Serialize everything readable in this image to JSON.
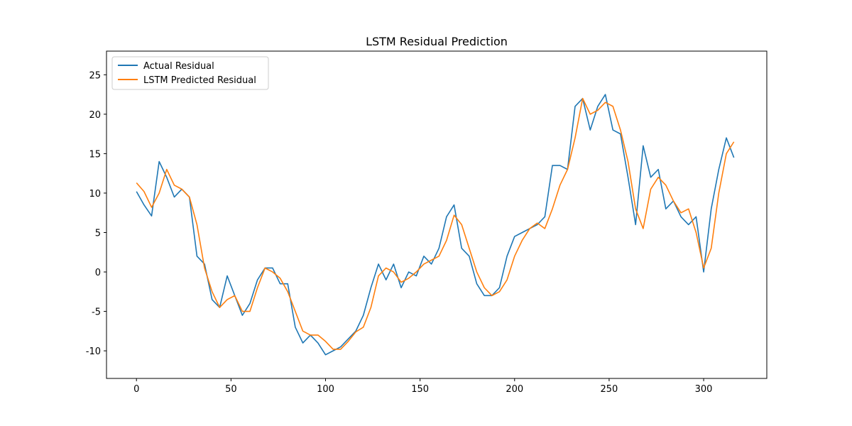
{
  "chart_data": {
    "type": "line",
    "title": "LSTM Residual Prediction",
    "x": [
      0,
      4,
      8,
      12,
      16,
      20,
      24,
      28,
      32,
      36,
      40,
      44,
      48,
      52,
      56,
      60,
      64,
      68,
      72,
      76,
      80,
      84,
      88,
      92,
      96,
      100,
      104,
      108,
      112,
      116,
      120,
      124,
      128,
      132,
      136,
      140,
      144,
      148,
      152,
      156,
      160,
      164,
      168,
      172,
      176,
      180,
      184,
      188,
      192,
      196,
      200,
      204,
      208,
      212,
      216,
      220,
      224,
      228,
      232,
      236,
      240,
      244,
      248,
      252,
      256,
      260,
      264,
      268,
      272,
      276,
      280,
      284,
      288,
      292,
      296,
      300,
      304,
      308,
      312,
      316
    ],
    "series": [
      {
        "name": "Actual Residual",
        "color": "#1f77b4",
        "values": [
          10.2,
          8.5,
          7.1,
          14,
          12,
          9.5,
          10.5,
          9.5,
          2,
          1,
          -3.5,
          -4.5,
          -0.5,
          -3,
          -5.5,
          -4,
          -1,
          0.5,
          0.5,
          -1.5,
          -1.5,
          -7,
          -9,
          -8,
          -9,
          -10.5,
          -10,
          -9.5,
          -8.5,
          -7.5,
          -5.5,
          -2,
          1,
          -1,
          1,
          -2,
          0,
          -0.5,
          2,
          1,
          3,
          7,
          8.5,
          3,
          2,
          -1.5,
          -3,
          -3,
          -2,
          2,
          4.5,
          5,
          5.5,
          6,
          7,
          13.5,
          13.5,
          13,
          21,
          22,
          18,
          21,
          22.5,
          18,
          17.5,
          12,
          6,
          16,
          12,
          13,
          8,
          9,
          7,
          6,
          7,
          0,
          8,
          13,
          17,
          14.5
        ]
      },
      {
        "name": "LSTM Predicted Residual",
        "color": "#ff7f0e",
        "values": [
          11.3,
          10.2,
          8.2,
          10,
          13,
          11,
          10.5,
          9.5,
          6,
          0.5,
          -2.5,
          -4.5,
          -3.5,
          -3,
          -5,
          -5,
          -2,
          0.5,
          0,
          -0.8,
          -2.5,
          -5,
          -7.5,
          -8,
          -8,
          -8.8,
          -9.8,
          -9.8,
          -8.8,
          -7.6,
          -7,
          -4.5,
          -0.5,
          0.5,
          0,
          -1.3,
          -0.8,
          0,
          1,
          1.5,
          2,
          4,
          7.2,
          6,
          3,
          0,
          -2,
          -3,
          -2.5,
          -1,
          2,
          4,
          5.5,
          6.2,
          5.5,
          8,
          11,
          13,
          17,
          22,
          20,
          20.5,
          21.5,
          21,
          18,
          14,
          8,
          5.5,
          10.5,
          12,
          11,
          9,
          7.5,
          8,
          5,
          0.5,
          3,
          10,
          15,
          16.5
        ]
      }
    ],
    "xlim": [
      -15.85,
      333.4
    ],
    "ylim": [
      -13.5,
      28
    ],
    "xticks": [
      0,
      50,
      100,
      150,
      200,
      250,
      300
    ],
    "yticks": [
      -10,
      -5,
      0,
      5,
      10,
      15,
      20,
      25
    ],
    "legend": "upper left",
    "grid": false
  }
}
